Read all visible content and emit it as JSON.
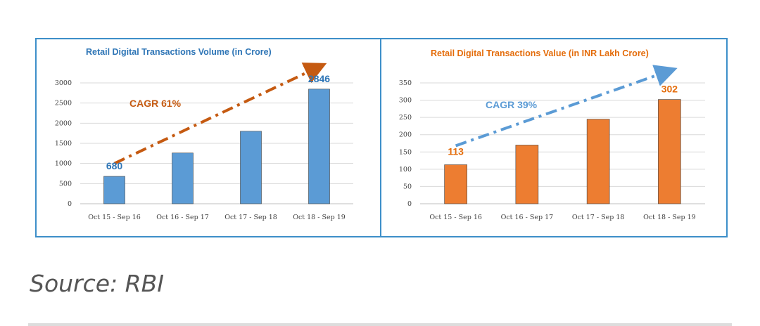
{
  "caption": "Source: RBI",
  "colors": {
    "border": "#3d8fc9",
    "grid": "#d9d9d9",
    "axis": "#bfbfbf",
    "title": "#2e75b6",
    "title_orange": "#e46c0a"
  },
  "chart_data": [
    {
      "type": "bar",
      "title": "Retail Digital Transactions Volume (in Crore)",
      "xlabel": "",
      "ylabel": "",
      "categories": [
        "Oct 15 - Sep 16",
        "Oct 16 - Sep 17",
        "Oct 17 - Sep 18",
        "Oct 18 - Sep 19"
      ],
      "values": [
        680,
        1260,
        1800,
        2846
      ],
      "yticks": [
        0,
        500,
        1000,
        1500,
        2000,
        2500,
        3000
      ],
      "ylim": [
        0,
        3000
      ],
      "grid": true,
      "bar_color": "#5b9bd5",
      "data_labels": [
        {
          "text": "680",
          "index": 0,
          "color": "#2e75b6"
        },
        {
          "text": "2846",
          "index": 3,
          "color": "#2e75b6"
        }
      ],
      "trend": {
        "label": "CAGR 61%",
        "color": "#c55a11",
        "from": {
          "x": "Oct 15 - Sep 16",
          "y": 1000
        },
        "to": {
          "x": "Oct 18 - Sep 19",
          "y": 3400
        }
      }
    },
    {
      "type": "bar",
      "title": "Retail Digital Transactions Value (in INR Lakh Crore)",
      "xlabel": "",
      "ylabel": "",
      "categories": [
        "Oct 15 - Sep 16",
        "Oct 16 - Sep 17",
        "Oct 17 - Sep 18",
        "Oct 18 - Sep 19"
      ],
      "values": [
        113,
        170,
        245,
        302
      ],
      "yticks": [
        0,
        50,
        100,
        150,
        200,
        250,
        300,
        350
      ],
      "ylim": [
        0,
        350
      ],
      "grid": true,
      "bar_color": "#ed7d31",
      "data_labels": [
        {
          "text": "113",
          "index": 0,
          "color": "#e46c0a"
        },
        {
          "text": "302",
          "index": 3,
          "color": "#e46c0a"
        }
      ],
      "trend": {
        "label": "CAGR 39%",
        "color": "#5b9bd5",
        "from": {
          "x": "Oct 15 - Sep 16",
          "y": 168
        },
        "to": {
          "x": "Oct 18 - Sep 19",
          "y": 385
        }
      }
    }
  ]
}
